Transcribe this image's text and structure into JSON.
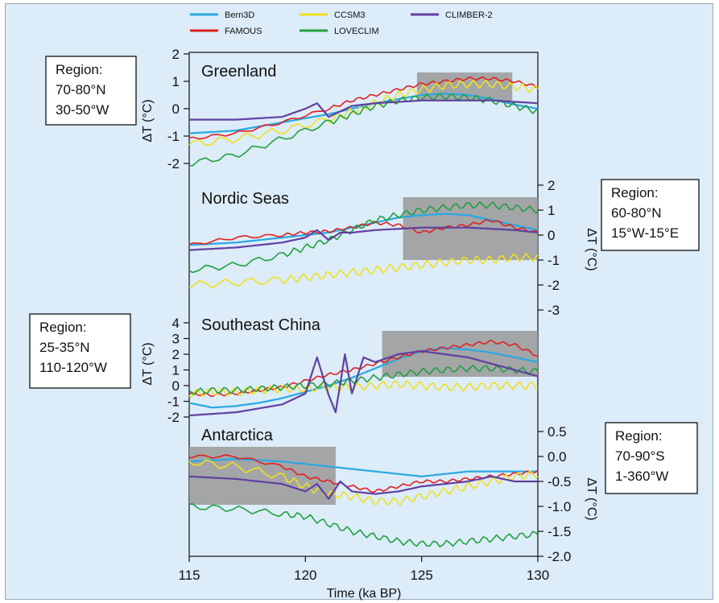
{
  "colors": {
    "background": "#dcecf8",
    "shade": "#999999",
    "Bern3D": "#2aa8e0",
    "FAMOUS": "#e02020",
    "CCSM3": "#f0e020",
    "LOVECLIM": "#20a040",
    "CLIMBER-2": "#6040a0"
  },
  "chart_data": {
    "type": "line",
    "x_axis": {
      "label": "Time (ka BP)",
      "range": [
        115,
        130
      ],
      "ticks": [
        115,
        120,
        125,
        130
      ],
      "tick_labels": [
        "115",
        "120",
        "125",
        "130"
      ]
    },
    "legend": {
      "placement": "top",
      "entries": [
        "Bern3D",
        "CCSM3",
        "CLIMBER-2",
        "FAMOUS",
        "LOVECLIM"
      ]
    },
    "panels": [
      {
        "name": "Greenland",
        "y_label": "ΔT (°C)",
        "y_axis_side": "left",
        "y_ticks": [
          -2,
          -1,
          0,
          1,
          2
        ],
        "y_tick_labels": [
          "-2",
          "-1",
          "0",
          "1",
          "2"
        ],
        "region_lines": [
          "Region:",
          "70-80°N",
          "30-50°W"
        ],
        "region_box_side": "left",
        "shaded_interval": [
          124.8,
          128.9
        ],
        "series": [
          {
            "name": "Bern3D",
            "x": [
              115,
              117,
              119,
              121,
              122,
              123,
              124,
              125,
              126,
              127,
              128,
              129,
              130
            ],
            "y": [
              -0.9,
              -0.8,
              -0.5,
              -0.2,
              0.0,
              0.2,
              0.35,
              0.5,
              0.55,
              0.5,
              0.35,
              0.15,
              0.0
            ]
          },
          {
            "name": "FAMOUS",
            "x": [
              115,
              117,
              119,
              121,
              122,
              123,
              124,
              125,
              126,
              127,
              128,
              129,
              130
            ],
            "y": [
              -1.1,
              -0.9,
              -0.5,
              0.0,
              0.3,
              0.5,
              0.7,
              0.9,
              1.0,
              1.1,
              1.1,
              1.0,
              0.8
            ]
          },
          {
            "name": "CCSM3",
            "x": [
              115,
              117,
              119,
              121,
              122,
              123,
              124,
              125,
              126,
              127,
              128,
              129,
              130
            ],
            "y": [
              -1.3,
              -1.1,
              -0.8,
              -0.4,
              -0.1,
              0.2,
              0.5,
              0.7,
              0.85,
              0.9,
              0.9,
              0.8,
              0.7
            ]
          },
          {
            "name": "LOVECLIM",
            "x": [
              115,
              117,
              119,
              121,
              122,
              123,
              124,
              125,
              126,
              127,
              128,
              129,
              130
            ],
            "y": [
              -2.0,
              -1.7,
              -1.1,
              -0.5,
              -0.2,
              0.1,
              0.3,
              0.4,
              0.45,
              0.4,
              0.3,
              0.1,
              -0.1
            ]
          },
          {
            "name": "CLIMBER-2",
            "x": [
              115,
              117,
              119,
              120,
              120.5,
              121,
              121.5,
              122,
              123,
              124,
              125,
              126,
              127,
              128,
              129,
              130
            ],
            "y": [
              -0.4,
              -0.4,
              -0.3,
              0.0,
              0.2,
              -0.3,
              -0.1,
              0.1,
              0.2,
              0.25,
              0.3,
              0.3,
              0.3,
              0.3,
              0.25,
              0.2
            ]
          }
        ]
      },
      {
        "name": "Nordic Seas",
        "y_label": "ΔT (°C)",
        "y_axis_side": "right",
        "y_ticks": [
          -3,
          -2,
          -1,
          0,
          1,
          2
        ],
        "y_tick_labels": [
          "-3",
          "-2",
          "-1",
          "0",
          "1",
          "2"
        ],
        "region_lines": [
          "Region:",
          "60-80°N",
          "15°W-15°E"
        ],
        "region_box_side": "right",
        "shaded_interval": [
          124.2,
          130
        ],
        "series": [
          {
            "name": "Bern3D",
            "x": [
              115,
              117,
              119,
              120,
              121,
              122,
              123,
              124,
              125,
              126,
              127,
              128,
              129,
              130
            ],
            "y": [
              -0.4,
              -0.3,
              -0.1,
              0.0,
              0.1,
              0.3,
              0.5,
              0.7,
              0.8,
              0.85,
              0.8,
              0.6,
              0.4,
              0.2
            ]
          },
          {
            "name": "FAMOUS",
            "x": [
              115,
              117,
              119,
              120,
              121,
              122,
              123,
              124,
              125,
              126,
              127,
              128,
              129,
              130
            ],
            "y": [
              -0.4,
              -0.1,
              0.0,
              0.1,
              0.15,
              0.3,
              0.5,
              0.4,
              0.1,
              0.3,
              0.4,
              0.6,
              0.3,
              0.1
            ]
          },
          {
            "name": "CCSM3",
            "x": [
              115,
              117,
              119,
              120,
              121,
              122,
              123,
              124,
              125,
              126,
              127,
              128,
              129,
              130
            ],
            "y": [
              -2.0,
              -1.9,
              -1.8,
              -1.7,
              -1.6,
              -1.5,
              -1.4,
              -1.3,
              -1.2,
              -1.1,
              -1.0,
              -1.0,
              -0.9,
              -0.9
            ]
          },
          {
            "name": "LOVECLIM",
            "x": [
              115,
              117,
              119,
              120,
              121,
              122,
              123,
              124,
              125,
              126,
              127,
              128,
              129,
              130
            ],
            "y": [
              -1.4,
              -1.2,
              -0.8,
              -0.5,
              -0.2,
              0.2,
              0.6,
              0.8,
              1.0,
              1.1,
              1.2,
              1.2,
              1.1,
              1.0
            ]
          },
          {
            "name": "CLIMBER-2",
            "x": [
              115,
              117,
              119,
              120,
              120.5,
              121,
              121.5,
              122,
              123,
              124,
              125,
              126,
              127,
              128,
              129,
              130
            ],
            "y": [
              -0.6,
              -0.5,
              -0.3,
              -0.1,
              0.2,
              -0.2,
              0.1,
              0.1,
              0.2,
              0.25,
              0.3,
              0.3,
              0.3,
              0.25,
              0.2,
              0.1
            ]
          }
        ]
      },
      {
        "name": "Southeast China",
        "y_label": "ΔT (°C)",
        "y_axis_side": "left",
        "y_ticks": [
          -2,
          -1,
          0,
          1,
          2,
          3,
          4
        ],
        "y_tick_labels": [
          "-2",
          "-1",
          "0",
          "1",
          "2",
          "3",
          "4"
        ],
        "region_lines": [
          "Region:",
          "25-35°N",
          "110-120°W"
        ],
        "region_box_side": "left",
        "shaded_interval": [
          123.3,
          130
        ],
        "series": [
          {
            "name": "Bern3D",
            "x": [
              115,
              116,
              117,
              118,
              119,
              120,
              121,
              122,
              123,
              124,
              125,
              126,
              127,
              128,
              129,
              130
            ],
            "y": [
              -1.1,
              -1.4,
              -1.3,
              -1.1,
              -0.8,
              -0.4,
              0.0,
              0.5,
              1.1,
              1.7,
              2.2,
              2.4,
              2.3,
              2.1,
              1.8,
              1.5
            ]
          },
          {
            "name": "FAMOUS",
            "x": [
              115,
              116,
              117,
              118,
              119,
              120,
              121,
              122,
              123,
              124,
              125,
              126,
              127,
              128,
              129,
              130
            ],
            "y": [
              -0.5,
              -0.6,
              -0.5,
              -0.3,
              -0.1,
              0.3,
              0.7,
              1.0,
              1.4,
              1.8,
              2.2,
              2.4,
              2.6,
              2.8,
              2.6,
              1.9
            ]
          },
          {
            "name": "CCSM3",
            "x": [
              115,
              116,
              117,
              118,
              119,
              120,
              121,
              122,
              123,
              124,
              125,
              126,
              127,
              128,
              129,
              130
            ],
            "y": [
              -0.5,
              -0.4,
              -0.4,
              -0.3,
              -0.2,
              -0.2,
              -0.1,
              -0.1,
              0.0,
              0.1,
              0.0,
              -0.1,
              -0.1,
              0.0,
              0.0,
              0.0
            ]
          },
          {
            "name": "LOVECLIM",
            "x": [
              115,
              116,
              117,
              118,
              119,
              120,
              121,
              122,
              123,
              124,
              125,
              126,
              127,
              128,
              129,
              130
            ],
            "y": [
              -0.4,
              -0.3,
              -0.3,
              -0.2,
              -0.1,
              0.0,
              0.1,
              0.3,
              0.5,
              0.7,
              0.9,
              1.0,
              1.1,
              1.1,
              1.0,
              0.9
            ]
          },
          {
            "name": "CLIMBER-2",
            "x": [
              115,
              117,
              119,
              120,
              120.5,
              121,
              121.3,
              121.7,
              122,
              122.5,
              123,
              124,
              125,
              126,
              127,
              128,
              129,
              130
            ],
            "y": [
              -1.9,
              -1.7,
              -1.2,
              -0.5,
              1.8,
              -0.6,
              -1.7,
              2.0,
              -0.5,
              1.8,
              1.5,
              2.0,
              2.2,
              2.0,
              1.8,
              1.4,
              1.0,
              0.6
            ]
          }
        ]
      },
      {
        "name": "Antarctica",
        "y_label": "ΔT (°C)",
        "y_axis_side": "right",
        "y_ticks": [
          -2.0,
          -1.5,
          -1.0,
          -0.5,
          0.0,
          0.5
        ],
        "y_tick_labels": [
          "-2.0",
          "-1.5",
          "-1.0",
          "-0.5",
          "0.0",
          "0.5"
        ],
        "region_lines": [
          "Region:",
          "70-90°S",
          "1-360°W"
        ],
        "region_box_side": "right",
        "shaded_interval": [
          115,
          121.3
        ],
        "series": [
          {
            "name": "Bern3D",
            "x": [
              115,
              117,
              119,
              120,
              121,
              122,
              123,
              124,
              125,
              126,
              127,
              128,
              129,
              130
            ],
            "y": [
              -0.1,
              -0.05,
              -0.1,
              -0.15,
              -0.2,
              -0.25,
              -0.3,
              -0.35,
              -0.4,
              -0.35,
              -0.3,
              -0.3,
              -0.3,
              -0.3
            ]
          },
          {
            "name": "FAMOUS",
            "x": [
              115,
              117,
              119,
              120,
              121,
              122,
              123,
              124,
              125,
              126,
              127,
              128,
              129,
              130
            ],
            "y": [
              0.0,
              0.0,
              -0.2,
              -0.4,
              -0.5,
              -0.6,
              -0.7,
              -0.6,
              -0.5,
              -0.5,
              -0.45,
              -0.4,
              -0.35,
              -0.3
            ]
          },
          {
            "name": "CCSM3",
            "x": [
              115,
              117,
              119,
              120,
              121,
              122,
              123,
              124,
              125,
              126,
              127,
              128,
              129,
              130
            ],
            "y": [
              -0.1,
              -0.2,
              -0.4,
              -0.6,
              -0.75,
              -0.8,
              -0.9,
              -0.9,
              -0.8,
              -0.7,
              -0.6,
              -0.5,
              -0.4,
              -0.35
            ]
          },
          {
            "name": "LOVECLIM",
            "x": [
              115,
              117,
              119,
              120,
              121,
              122,
              123,
              124,
              125,
              126,
              127,
              128,
              129,
              130
            ],
            "y": [
              -1.0,
              -1.05,
              -1.15,
              -1.2,
              -1.35,
              -1.5,
              -1.6,
              -1.7,
              -1.75,
              -1.75,
              -1.7,
              -1.65,
              -1.6,
              -1.55
            ]
          },
          {
            "name": "CLIMBER-2",
            "x": [
              115,
              117,
              119,
              120,
              120.5,
              121,
              121.5,
              122,
              123,
              124,
              125,
              126,
              127,
              128,
              129,
              130
            ],
            "y": [
              -0.4,
              -0.45,
              -0.55,
              -0.7,
              -0.55,
              -0.85,
              -0.5,
              -0.7,
              -0.75,
              -0.7,
              -0.6,
              -0.55,
              -0.5,
              -0.4,
              -0.5,
              -0.5
            ]
          }
        ]
      }
    ]
  }
}
